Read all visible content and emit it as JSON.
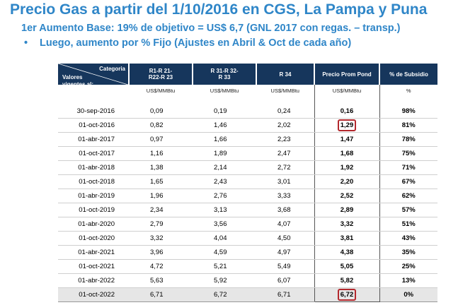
{
  "title": "Precio Gas a partir del 1/10/2016 en CGS, La Pampa y Puna",
  "subtitle": "1er Aumento Base: 19% de objetivo = US$ 6,7 (GNL 2017 con regas. – transp.)",
  "bullet": {
    "marker": "•",
    "text": "Luego, aumento por % Fijo (Ajustes en Abril & Oct de cada año)"
  },
  "table": {
    "header": {
      "categoria": "Categoria",
      "valores": [
        "Valores",
        "vigentes al:"
      ],
      "col1": [
        "R1-R 21-",
        "R22-R 23"
      ],
      "col2": [
        "R 31-R 32-",
        "R 33"
      ],
      "col3": "R 34",
      "col4": "Precio Prom Pond",
      "col5": "% de Subsidio"
    },
    "units": [
      "US$/MMBtu",
      "US$/MMBtu",
      "US$/MMBtu",
      "US$/MMBtu",
      "%"
    ],
    "rows": [
      {
        "date": "30-sep-2016",
        "r1": "0,09",
        "r31": "0,19",
        "r34": "0,24",
        "prom": "0,16",
        "subsidio": "98%"
      },
      {
        "date": "01-oct-2016",
        "r1": "0,82",
        "r31": "1,46",
        "r34": "2,02",
        "prom": "1,29",
        "subsidio": "81%"
      },
      {
        "date": "01-abr-2017",
        "r1": "0,97",
        "r31": "1,66",
        "r34": "2,23",
        "prom": "1,47",
        "subsidio": "78%"
      },
      {
        "date": "01-oct-2017",
        "r1": "1,16",
        "r31": "1,89",
        "r34": "2,47",
        "prom": "1,68",
        "subsidio": "75%"
      },
      {
        "date": "01-abr-2018",
        "r1": "1,38",
        "r31": "2,14",
        "r34": "2,72",
        "prom": "1,92",
        "subsidio": "71%"
      },
      {
        "date": "01-oct-2018",
        "r1": "1,65",
        "r31": "2,43",
        "r34": "3,01",
        "prom": "2,20",
        "subsidio": "67%"
      },
      {
        "date": "01-abr-2019",
        "r1": "1,96",
        "r31": "2,76",
        "r34": "3,33",
        "prom": "2,52",
        "subsidio": "62%"
      },
      {
        "date": "01-oct-2019",
        "r1": "2,34",
        "r31": "3,13",
        "r34": "3,68",
        "prom": "2,89",
        "subsidio": "57%"
      },
      {
        "date": "01-abr-2020",
        "r1": "2,79",
        "r31": "3,56",
        "r34": "4,07",
        "prom": "3,32",
        "subsidio": "51%"
      },
      {
        "date": "01-oct-2020",
        "r1": "3,32",
        "r31": "4,04",
        "r34": "4,50",
        "prom": "3,81",
        "subsidio": "43%"
      },
      {
        "date": "01-abr-2021",
        "r1": "3,96",
        "r31": "4,59",
        "r34": "4,97",
        "prom": "4,38",
        "subsidio": "35%"
      },
      {
        "date": "01-oct-2021",
        "r1": "4,72",
        "r31": "5,21",
        "r34": "5,49",
        "prom": "5,05",
        "subsidio": "25%"
      },
      {
        "date": "01-abr-2022",
        "r1": "5,63",
        "r31": "5,92",
        "r34": "6,07",
        "prom": "5,82",
        "subsidio": "13%"
      },
      {
        "date": "01-oct-2022",
        "r1": "6,71",
        "r31": "6,72",
        "r34": "6,71",
        "prom": "6,72",
        "subsidio": "0%"
      }
    ],
    "highlighted_cells": [
      "rows.1.prom",
      "rows.13.prom"
    ],
    "colors": {
      "header_bg": "#16365c",
      "highlight_border": "#b3282d",
      "title": "#2f86c8",
      "last_row_bg": "#e6e6e6"
    }
  }
}
